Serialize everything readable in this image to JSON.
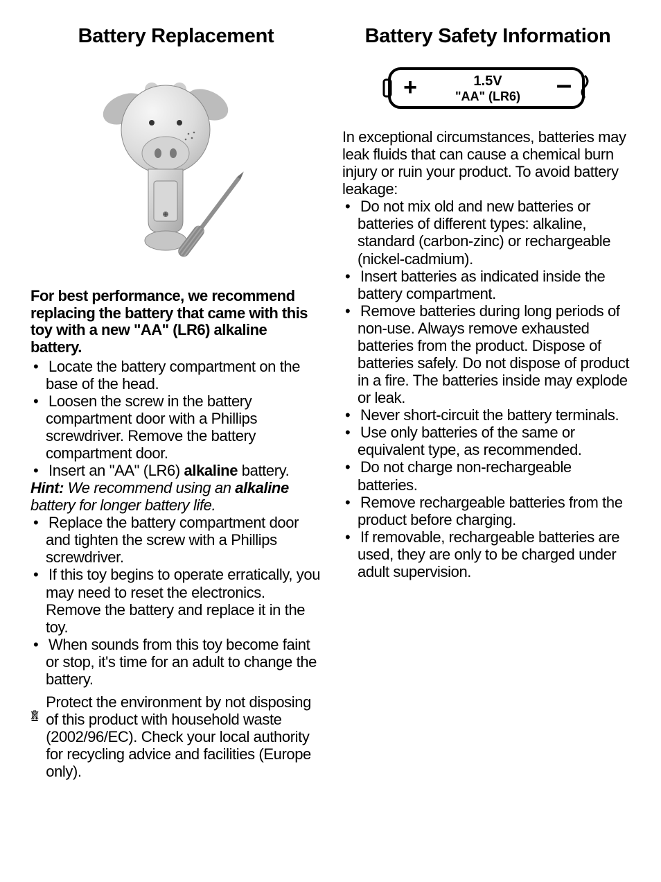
{
  "colors": {
    "text": "#000000",
    "bg": "#ffffff",
    "toy_light": "#e2e2e2",
    "toy_mid": "#bfbfbf",
    "toy_dark": "#8a8a8a",
    "outline": "#3a3a3a"
  },
  "left": {
    "title": "Battery Replacement",
    "lead": "For best performance, we recommend replacing the battery that came with this toy with a new \"AA\" (LR6) alkaline battery.",
    "bullets_a": [
      "Locate the battery compartment on the base of the head.",
      "Loosen the screw in the battery compartment door with a Phillips screwdriver. Remove the battery compartment door."
    ],
    "insert_prefix": "Insert an \"AA\" (LR6) ",
    "insert_bold": "alkaline",
    "insert_suffix": " battery.",
    "hint_label": "Hint:",
    "hint_mid": " We recommend using an ",
    "hint_bold": "alkaline",
    "hint_suffix": " battery for longer battery life.",
    "bullets_b": [
      "Replace the battery compartment door and tighten the screw with a Phillips screwdriver.",
      "If this toy begins to operate erratically, you may need to reset the electronics. Remove the battery and replace it in the toy.",
      "When sounds from this toy become faint or stop, it's time for an adult to change the battery."
    ],
    "weee": "Protect the environment by not disposing of this product with household waste (2002/96/EC). Check your local authority for recycling advice and facilities (Europe only)."
  },
  "right": {
    "title": "Battery Safety Information",
    "diagram": {
      "voltage": "1.5V",
      "size": "\"AA\" (LR6)",
      "plus": "+",
      "minus": "–"
    },
    "intro": "In exceptional circumstances, batteries may leak fluids that can cause a chemical burn injury or ruin your product. To avoid battery leakage:",
    "bullets": [
      "Do not mix old and new batteries or batteries of different types: alkaline, standard (carbon-zinc) or rechargeable (nickel-cadmium).",
      "Insert batteries as indicated inside the battery compartment.",
      "Remove batteries during long periods of non-use. Always remove exhausted batteries from the product. Dispose of batteries safely. Do not dispose of product in a fire. The batteries inside may explode or leak.",
      "Never short-circuit the battery terminals.",
      "Use only batteries of the same or equivalent type, as recommended.",
      "Do not charge non-rechargeable batteries.",
      "Remove rechargeable batteries from the product before charging.",
      "If removable, rechargeable batteries are used, they are only to be charged under adult supervision."
    ]
  }
}
